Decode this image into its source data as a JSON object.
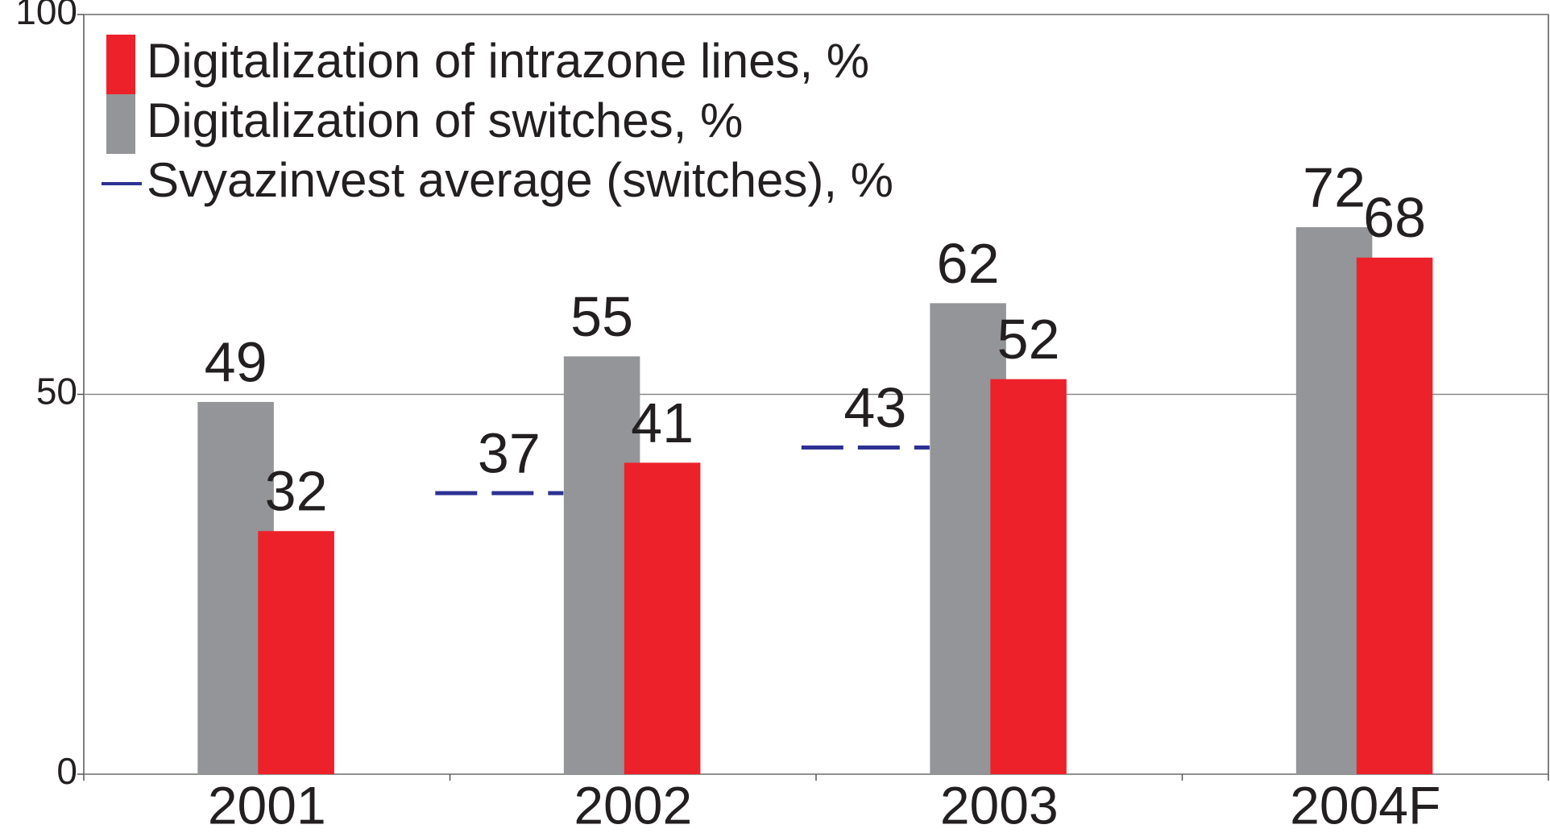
{
  "chart_data": {
    "type": "bar",
    "categories": [
      "2001",
      "2002",
      "2003",
      "2004F"
    ],
    "series": [
      {
        "name": "Digitalization of intrazone lines, %",
        "type": "bar",
        "color": "#ed2129",
        "values": [
          32,
          41,
          52,
          68
        ]
      },
      {
        "name": "Digitalization of switches, %",
        "type": "bar",
        "color": "#939598",
        "values": [
          49,
          55,
          62,
          72
        ]
      },
      {
        "name": "Svyazinvest average (switches), %",
        "type": "line",
        "color": "#2e3192",
        "values": [
          null,
          37,
          43,
          null
        ]
      }
    ],
    "ylim": [
      0,
      100
    ],
    "yticks": [
      0,
      50,
      100
    ],
    "grid": true,
    "legend": "top-left"
  }
}
